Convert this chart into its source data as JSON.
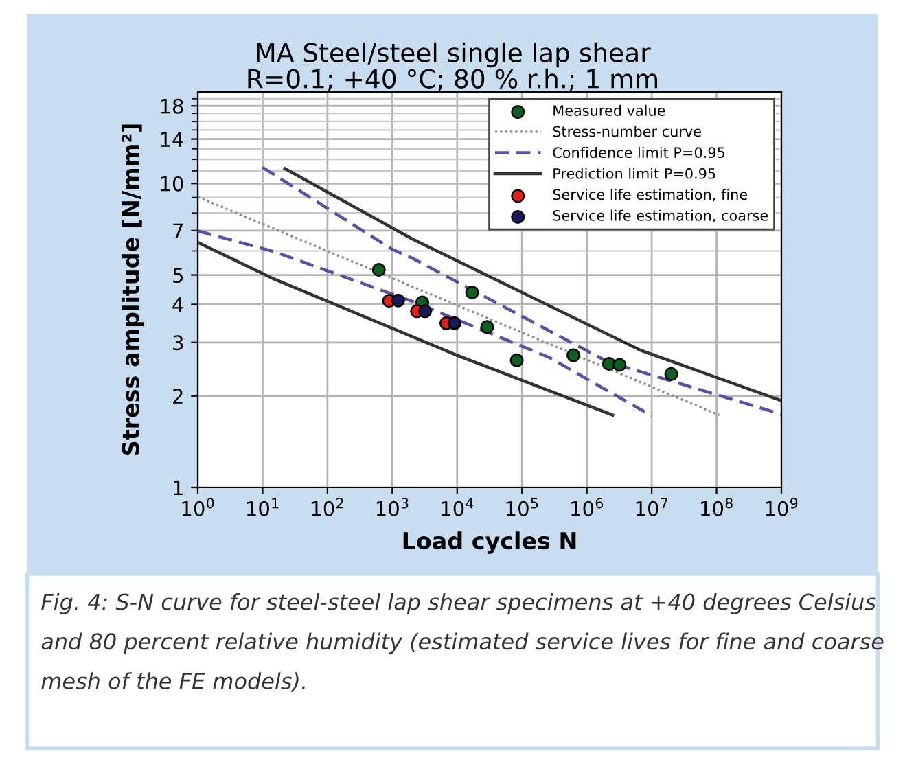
{
  "chart_data": {
    "type": "line",
    "title": "MA Steel/steel single lap shear",
    "subtitle": "R=0.1; +40 °C; 80 % r.h.; 1 mm",
    "xlabel": "Load cycles N",
    "ylabel": "Stress amplitude [N/mm²]",
    "log": "xy",
    "grid": true,
    "legend": "top right",
    "xlim": [
      1,
      1000000000
    ],
    "ylim": [
      1,
      20
    ],
    "xticks": [
      {
        "value": 1,
        "label": "10$^{0}$"
      },
      {
        "value": 10,
        "label": "10$^{1}$"
      },
      {
        "value": 100,
        "label": "10$^{2}$"
      },
      {
        "value": 1000,
        "label": "10$^{3}$"
      },
      {
        "value": 10000,
        "label": "10$^{4}$"
      },
      {
        "value": 100000,
        "label": "10$^{5}$"
      },
      {
        "value": 1000000,
        "label": "10$^{6}$"
      },
      {
        "value": 10000000,
        "label": "10$^{7}$"
      },
      {
        "value": 100000000,
        "label": "10$^{8}$"
      },
      {
        "value": 1000000000,
        "label": "10$^{9}$"
      }
    ],
    "yticks": [
      1,
      2,
      3,
      4,
      5,
      7,
      10,
      14,
      18
    ],
    "series": [
      {
        "name": "Measured value",
        "type": "scatter",
        "marker": "circle",
        "color": "#0f5f22",
        "x": [
          620,
          2900,
          17000,
          29000,
          83000,
          620000,
          2200000,
          3200000,
          20000000
        ],
        "values": [
          5.2,
          4.06,
          4.38,
          3.37,
          2.62,
          2.72,
          2.55,
          2.53,
          2.36
        ]
      },
      {
        "name": "Stress-number curve",
        "type": "line",
        "line_style": "dotted",
        "color": "#8c8c8c",
        "x": [
          1,
          110000000
        ],
        "values": [
          9.04,
          1.73
        ]
      },
      {
        "name": "Confidence limit P=0.95",
        "type": "line",
        "line_style": "dashed",
        "color": "#5b50a6",
        "x": [
          10,
          1000,
          2000,
          2100000,
          1000000000
        ],
        "values": [
          11.3,
          6.07,
          5.69,
          2.59,
          1.74
        ]
      },
      {
        "type": "line",
        "line_style": "dashed",
        "color": "#5b50a6",
        "x": [
          1,
          15,
          2000,
          260000,
          10000000
        ],
        "values": [
          6.98,
          5.97,
          4.1,
          2.68,
          1.72
        ]
      },
      {
        "name": "Prediction limit P=0.95",
        "type": "line",
        "line_style": "solid",
        "color": "#333333",
        "x": [
          22,
          2000,
          6900000,
          1000000000
        ],
        "values": [
          11.2,
          6.58,
          2.82,
          1.93
        ]
      },
      {
        "type": "line",
        "line_style": "solid",
        "color": "#333333",
        "x": [
          1,
          15,
          10000,
          2500000
        ],
        "values": [
          6.4,
          4.85,
          2.72,
          1.73
        ]
      },
      {
        "name": "Service life estimation, fine",
        "type": "scatter",
        "marker": "circle",
        "color": "#e3201b",
        "x": [
          890,
          2400,
          6800
        ],
        "values": [
          4.11,
          3.8,
          3.47
        ]
      },
      {
        "name": "Service life estimation, coarse",
        "type": "scatter",
        "marker": "circle",
        "color": "#16195a",
        "x": [
          1230,
          3200,
          9100
        ],
        "values": [
          4.12,
          3.8,
          3.47
        ]
      }
    ],
    "annotations": [
      "Fig. 4: S-N curve for steel-steel lap shear specimens at +40 degrees Celsius and 80 percent relative humidity (estimated service lives for fine and coarse mesh of the FE models)."
    ]
  }
}
